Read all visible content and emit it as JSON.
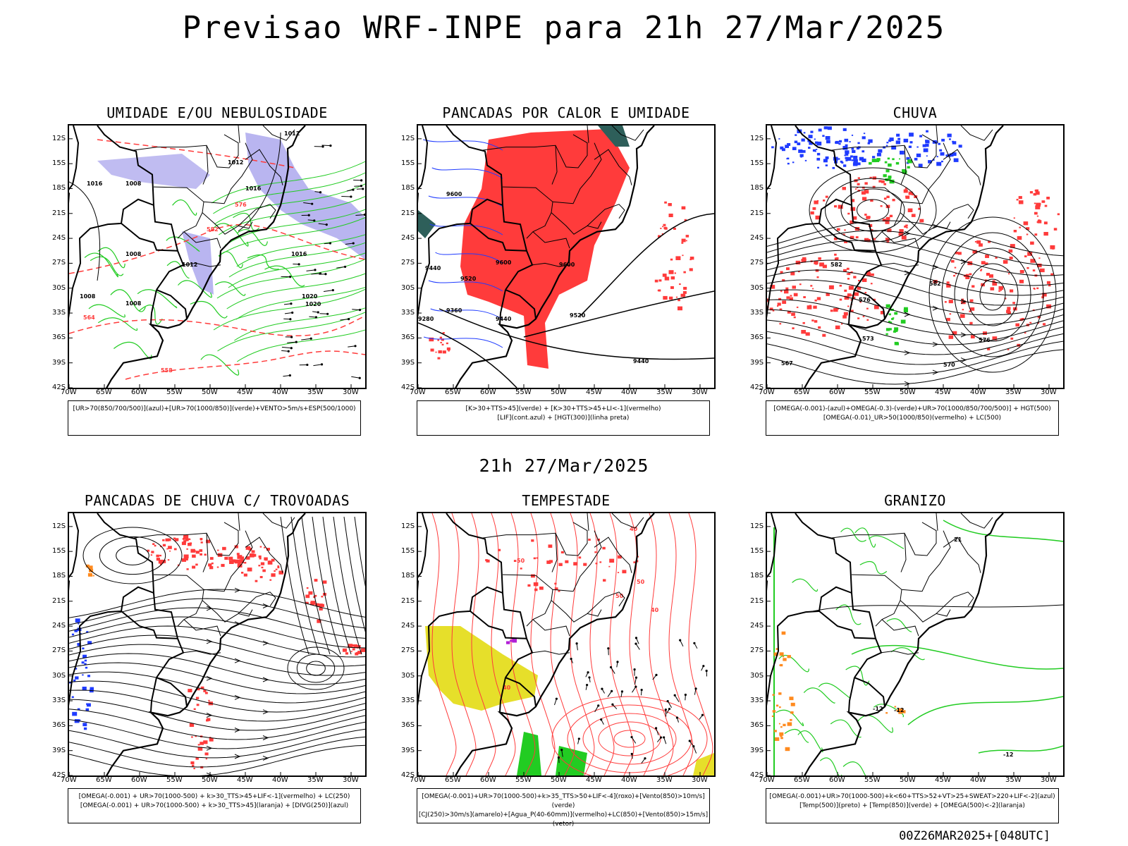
{
  "header": {
    "title": "Previsao WRF-INPE  para 21h 27/Mar/2025",
    "mid_date": "21h 27/Mar/2025",
    "footer_stamp": "00Z26MAR2025+[048UTC]"
  },
  "colors": {
    "red": "#ff3b3b",
    "blue": "#1f3bff",
    "green": "#22cc22",
    "lavender": "#b9b5f0",
    "yellow": "#e6df2a",
    "teal": "#2e5f5a",
    "orange": "#ff8a1f",
    "purple": "#b21fd6"
  },
  "axes": {
    "lat_ticks": [
      "12S",
      "15S",
      "18S",
      "21S",
      "24S",
      "27S",
      "30S",
      "33S",
      "36S",
      "39S",
      "42S"
    ],
    "lon_ticks": [
      "70W",
      "65W",
      "60W",
      "55W",
      "50W",
      "45W",
      "40W",
      "35W",
      "30W"
    ]
  },
  "chart_data": [
    {
      "type": "map",
      "title": "UMIDADE E/OU NEBULOSIDADE",
      "legend": [
        "[UR>70(850/700/500)](azul)+[UR>70(1000/850)](verde)+VENTO>5m/s+ESP(500/1000)"
      ],
      "contour_labels": [
        "1012",
        "1016",
        "1008",
        "1012",
        "1016",
        "1008",
        "1020",
        "1008",
        "1012",
        "1016",
        "1020",
        "1008",
        "576",
        "558",
        "582",
        "564"
      ],
      "xlim": [
        -70,
        -28
      ],
      "ylim": [
        -42,
        -10
      ]
    },
    {
      "type": "map",
      "title": "PANCADAS POR CALOR E UMIDADE",
      "legend": [
        "[K>30+TTS>45](verde)  +  [K>30+TTS>45+LI<-1](vermelho)",
        "[LIF](cont.azul)  +  [HGT(300)](linha preta)"
      ],
      "contour_labels": [
        "9600",
        "9440",
        "9520",
        "9360",
        "9280",
        "9440",
        "9600",
        "9520",
        "9440",
        "9600"
      ],
      "xlim": [
        -70,
        -28
      ],
      "ylim": [
        -42,
        -10
      ]
    },
    {
      "type": "map",
      "title": "CHUVA",
      "legend": [
        "[OMEGA(-0.001)-(azul)+OMEGA(-0.3)-(verde)+UR>70(1000/850/700/500)]  +  HGT(500)",
        "[OMEGA(-0.01)_UR>50(1000/850)(vermelho)  +  LC(500)"
      ],
      "contour_labels": [
        "582",
        "576",
        "582",
        "573",
        "576",
        "570",
        "567"
      ],
      "xlim": [
        -70,
        -28
      ],
      "ylim": [
        -42,
        -10
      ]
    },
    {
      "type": "map",
      "title": "PANCADAS DE CHUVA C/ TROVOADAS",
      "legend": [
        "[OMEGA(-0.001)  +  UR>70(1000-500)  +  k>30_TTS>45+LIF<-1](vermelho)  +  LC(250)",
        "[OMEGA(-0.001)  +  UR>70(1000-500)  +  k>30_TTS>45](laranja)  +  [DIVG(250)](azul)"
      ],
      "contour_labels": [],
      "xlim": [
        -70,
        -28
      ],
      "ylim": [
        -42,
        -10
      ]
    },
    {
      "type": "map",
      "title": "TEMPESTADE",
      "legend": [
        "[OMEGA(-0.001)+UR>70(1000-500)+k>35_TTS>50+LIF<-4](roxo)+[Vento(850)>10m/s](verde)",
        "[CJ(250)>30m/s](amarelo)+[Agua_P(40-60mm)](vermelho)+LC(850)+[Vento(850)>15m/s](vetor)"
      ],
      "contour_labels": [
        "40",
        "50",
        "50",
        "40",
        "50",
        "40"
      ],
      "xlim": [
        -70,
        -28
      ],
      "ylim": [
        -42,
        -10
      ]
    },
    {
      "type": "map",
      "title": "GRANIZO",
      "legend": [
        "[OMEGA(-0.001)+UR>70(1000-500)+k<60+TTS>52+VT>25+SWEAT>220+LIF<-2](azul)",
        "[Temp(500)](preto)  +  [Temp(850)](verde)  +  [OMEGA(500)<-2](laranja)"
      ],
      "contour_labels": [
        "-12",
        "-12",
        "-12",
        "21"
      ],
      "xlim": [
        -70,
        -28
      ],
      "ylim": [
        -42,
        -10
      ]
    }
  ]
}
